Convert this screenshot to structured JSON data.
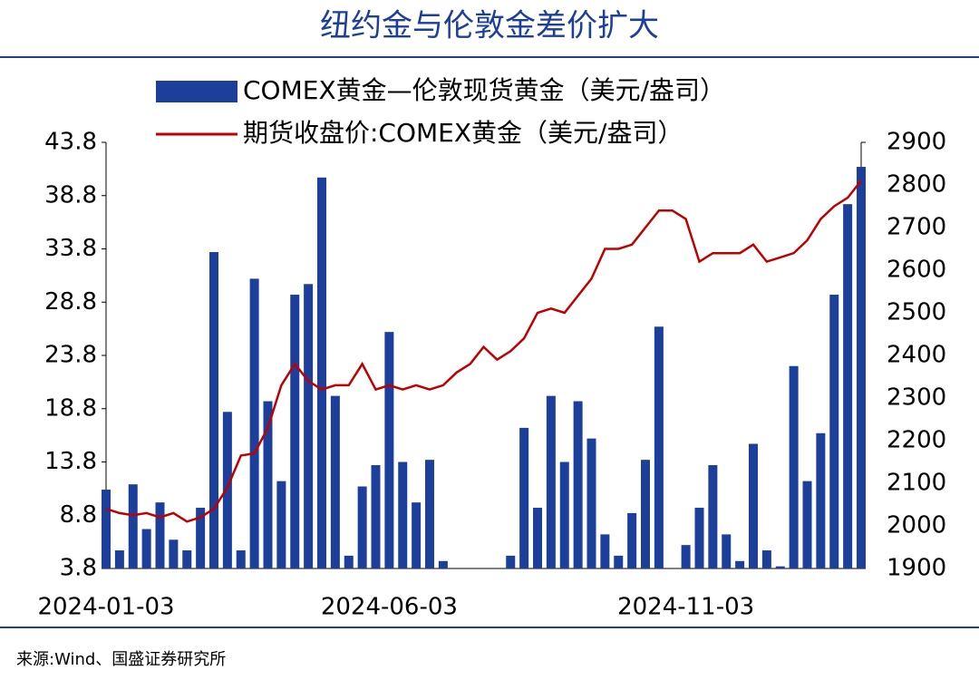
{
  "chart_data": {
    "type": "bar",
    "title": "纽约金与伦敦金差价扩大",
    "source": "来源:Wind、国盛证券研究所",
    "categories": [
      "2024-01-03",
      null,
      null,
      null,
      null,
      null,
      null,
      null,
      null,
      null,
      null,
      null,
      null,
      null,
      null,
      null,
      null,
      null,
      null,
      null,
      null,
      "2024-06-03",
      null,
      null,
      null,
      null,
      null,
      null,
      null,
      null,
      null,
      null,
      null,
      null,
      null,
      null,
      null,
      null,
      null,
      null,
      null,
      null,
      null,
      "2024-11-03",
      null,
      null,
      null,
      null,
      null,
      null,
      null,
      null,
      null,
      null,
      null,
      null,
      null
    ],
    "series": [
      {
        "name": "COMEX黄金—伦敦现货黄金（美元/盎司）",
        "type": "bar",
        "color": "#1c3f9b",
        "axis": "y",
        "values": [
          11.2,
          5.5,
          11.7,
          7.5,
          10,
          6.5,
          5.5,
          9.5,
          33.5,
          18.5,
          5.5,
          31,
          19.5,
          12,
          29.5,
          30.5,
          40.5,
          20,
          5,
          11.5,
          13.5,
          26,
          13.8,
          10,
          14,
          4.5,
          3.8,
          3.8,
          3.8,
          3.8,
          5,
          17,
          9.5,
          20,
          13.8,
          19.5,
          16,
          7,
          5,
          9,
          14,
          26.5,
          3.8,
          6,
          9.5,
          13.5,
          7,
          4.5,
          15.5,
          5.5,
          4,
          22.8,
          12,
          16.5,
          29.5,
          38,
          41.5
        ]
      },
      {
        "name": "期货收盘价:COMEX黄金（美元/盎司）",
        "type": "line",
        "color": "#c00000",
        "axis": "y2",
        "values": [
          2040,
          2030,
          2025,
          2030,
          2020,
          2030,
          2010,
          2020,
          2040,
          2090,
          2165,
          2170,
          2230,
          2330,
          2380,
          2340,
          2320,
          2330,
          2330,
          2380,
          2320,
          2330,
          2320,
          2330,
          2320,
          2330,
          2360,
          2380,
          2420,
          2390,
          2410,
          2440,
          2500,
          2510,
          2500,
          2540,
          2580,
          2650,
          2650,
          2660,
          2700,
          2740,
          2740,
          2720,
          2620,
          2640,
          2640,
          2640,
          2660,
          2620,
          2630,
          2640,
          2670,
          2720,
          2750,
          2770,
          2810
        ]
      }
    ],
    "ylim": [
      3.8,
      43.8
    ],
    "yticks": [
      3.8,
      8.8,
      13.8,
      18.8,
      23.8,
      28.8,
      33.8,
      38.8,
      43.8
    ],
    "y2lim": [
      1900,
      2900
    ],
    "y2ticks": [
      1900,
      2000,
      2100,
      2200,
      2300,
      2400,
      2500,
      2600,
      2700,
      2800,
      2900
    ]
  }
}
